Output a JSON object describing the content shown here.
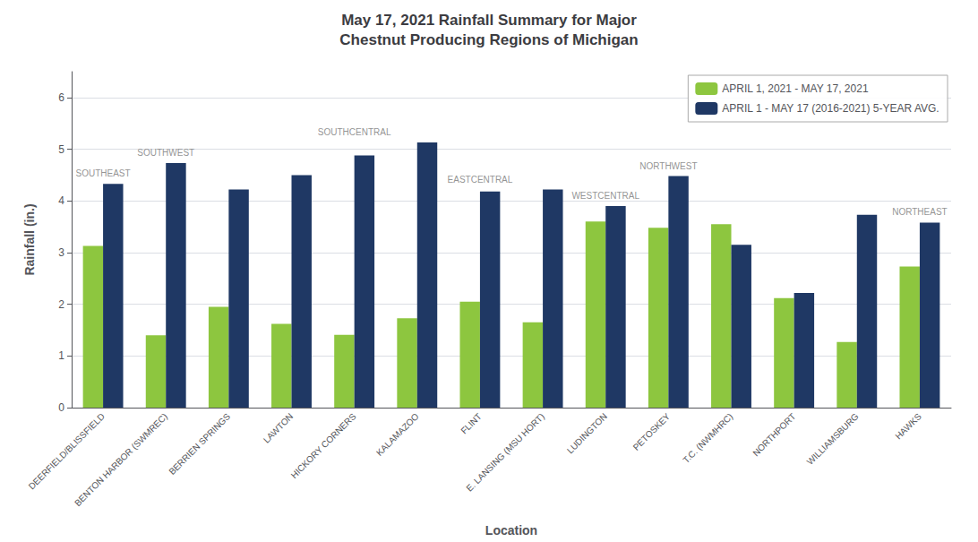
{
  "chart_data": {
    "type": "bar",
    "title": "May 17, 2021 Rainfall Summary for Major\nChestnut Producing Regions of Michigan",
    "x_label": "Location",
    "y_label": "Rainfall (in.)",
    "categories": [
      "DEERFIELD/BLISSFIELD",
      "BENTON HARBOR (SWMREC)",
      "BERRIEN SPRINGS",
      "LAWTON",
      "HICKORY CORNERS",
      "KALAMAZOO",
      "FLINT",
      "E. LANSING (MSU HORT)",
      "LUDINGTON",
      "PETOSKEY",
      "T.C. (NWMHRC)",
      "NORTHPORT",
      "WILLIAMSBURG",
      "HAWKS"
    ],
    "series": [
      {
        "name": "APRIL 1, 2021 - MAY 17, 2021",
        "color": "#8DC63F",
        "values": [
          3.13,
          1.4,
          1.95,
          1.62,
          1.41,
          1.73,
          2.05,
          1.65,
          3.6,
          3.48,
          3.55,
          2.12,
          1.27,
          2.73
        ]
      },
      {
        "name": "APRIL 1 - MAY 17 (2016-2021) 5-YEAR AVG.",
        "color": "#1F3864",
        "values": [
          4.33,
          4.73,
          4.22,
          4.5,
          4.88,
          5.13,
          4.18,
          4.22,
          3.9,
          4.48,
          3.15,
          2.22,
          3.73,
          3.58
        ]
      }
    ],
    "ylim": [
      0,
      6.5
    ],
    "yticks": [
      0,
      1,
      2,
      3,
      4,
      5,
      6
    ],
    "grid": true,
    "legend": "upper right",
    "annotations": [
      {
        "text": "SOUTHEAST",
        "categories": [
          "DEERFIELD/BLISSFIELD"
        ]
      },
      {
        "text": "SOUTHWEST",
        "categories": [
          "BENTON HARBOR (SWMREC)",
          "BERRIEN SPRINGS",
          "LAWTON"
        ]
      },
      {
        "text": "SOUTHCENTRAL",
        "categories": [
          "HICKORY CORNERS",
          "KALAMAZOO"
        ]
      },
      {
        "text": "EASTCENTRAL",
        "categories": [
          "FLINT",
          "E. LANSING (MSU HORT)"
        ]
      },
      {
        "text": "WESTCENTRAL",
        "categories": [
          "LUDINGTON"
        ]
      },
      {
        "text": "NORTHWEST",
        "categories": [
          "PETOSKEY",
          "T.C. (NWMHRC)",
          "NORTHPORT",
          "WILLIAMSBURG"
        ]
      },
      {
        "text": "NORTHEAST",
        "categories": [
          "HAWKS"
        ]
      }
    ]
  }
}
